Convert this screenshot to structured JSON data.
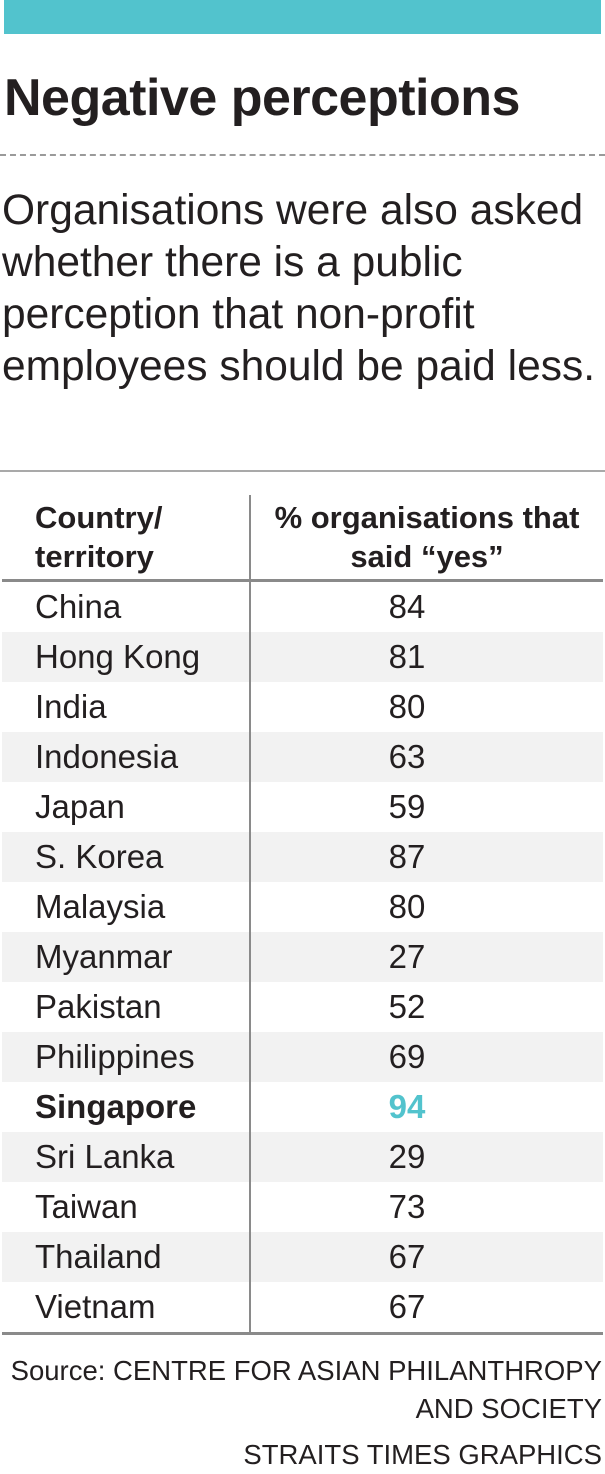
{
  "accent_color": "#52c3cd",
  "title": "Negative perceptions",
  "intro": "Organisations were also asked whether there is a public perception that non-profit employees should be paid less.",
  "chart_data": {
    "type": "table",
    "columns": [
      "Country/ territory",
      "% organisations that said “yes”"
    ],
    "rows": [
      {
        "label": "China",
        "value": 84
      },
      {
        "label": "Hong Kong",
        "value": 81
      },
      {
        "label": "India",
        "value": 80
      },
      {
        "label": "Indonesia",
        "value": 63
      },
      {
        "label": "Japan",
        "value": 59
      },
      {
        "label": "S. Korea",
        "value": 87
      },
      {
        "label": "Malaysia",
        "value": 80
      },
      {
        "label": "Myanmar",
        "value": 27
      },
      {
        "label": "Pakistan",
        "value": 52
      },
      {
        "label": "Philippines",
        "value": 69
      },
      {
        "label": "Singapore",
        "value": 94,
        "highlight": true
      },
      {
        "label": "Sri Lanka",
        "value": 29
      },
      {
        "label": "Taiwan",
        "value": 73
      },
      {
        "label": "Thailand",
        "value": 67
      },
      {
        "label": "Vietnam",
        "value": 67
      }
    ]
  },
  "source": "Source: CENTRE FOR ASIAN PHILANTHROPY AND SOCIETY",
  "credit": "STRAITS TIMES GRAPHICS"
}
